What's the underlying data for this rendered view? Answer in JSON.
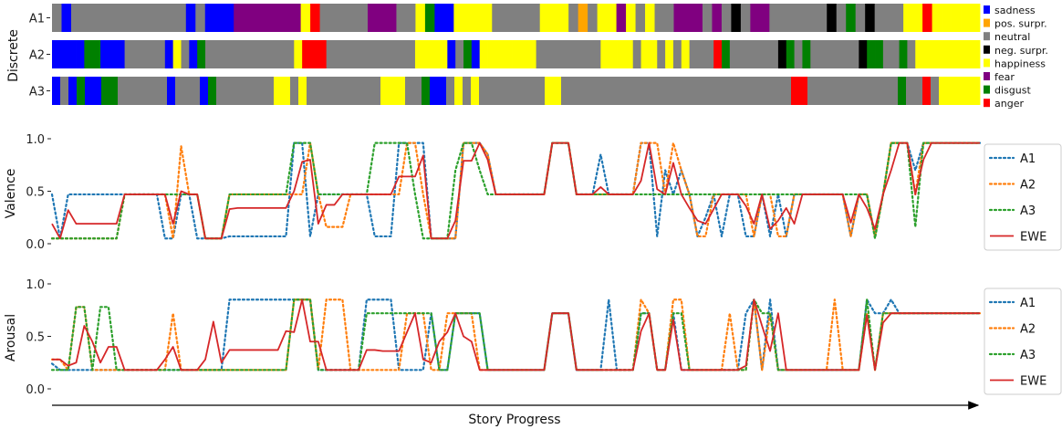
{
  "chart_data": [
    {
      "type": "heatmap",
      "ylabel": "Discrete",
      "rows": [
        "A1",
        "A2",
        "A3"
      ],
      "legend": [
        {
          "label": "sadness",
          "color": "#0000ff"
        },
        {
          "label": "pos. surpr.",
          "color": "#ffa500"
        },
        {
          "label": "neutral",
          "color": "#808080"
        },
        {
          "label": "neg. surpr.",
          "color": "#000000"
        },
        {
          "label": "happiness",
          "color": "#ffff00"
        },
        {
          "label": "fear",
          "color": "#800080"
        },
        {
          "label": "disgust",
          "color": "#008000"
        },
        {
          "label": "anger",
          "color": "#ff0000"
        }
      ],
      "emotion_codes": {
        "B": "sadness",
        "O": "pos. surpr.",
        "G": "neutral",
        "K": "neg. surpr.",
        "Y": "happiness",
        "P": "fear",
        "D": "disgust",
        "R": "anger"
      },
      "sequences": {
        "A1": "GBGGGGGGGGGGGGBGBBBPPPPPPPYRGGGGGPPPGGYDBBYYYYGGGGGYYYGOGYYPYGYGGPPPGPGKGPPGGGGGGKGDGKGGGYYRYYYYY",
        "A2": "BBBBDDBBBGGGGGBYGBDGGGGGGGGGGGYRRRGGGGGGGGGGGYYYYBGDBYYYYYYYGGGGGGGGYYYYGYYGYGYGGGRDGGGGGGKDGDGGGGGGKDDGGDGYYYYYYYY",
        "A3": "BGBDBBDDGGGGGGBGGGBDGGGGGGGYYGYGGGGGGGGGYYYGGDBBGYGYGGGGGGGGYYGGGGGGGGGGGGGGGGGGGGGGGGGGGGRRGGGGGGGGGGGDGGRGYYYYY"
      }
    },
    {
      "type": "line",
      "ylabel": "Valence",
      "ylim": [
        0.0,
        1.0
      ],
      "yticks": [
        "0.0",
        "0.5",
        "1.0"
      ],
      "legend": [
        "A1",
        "A2",
        "A3",
        "EWE"
      ],
      "series": [
        {
          "name": "A1",
          "style": "dotted",
          "color": "#1f77b4",
          "values": [
            0.47,
            0.05,
            0.47,
            0.47,
            0.47,
            0.47,
            0.47,
            0.47,
            0.47,
            0.47,
            0.47,
            0.47,
            0.47,
            0.47,
            0.05,
            0.05,
            0.47,
            0.47,
            0.05,
            0.05,
            0.05,
            0.05,
            0.07,
            0.07,
            0.07,
            0.07,
            0.07,
            0.07,
            0.07,
            0.07,
            0.96,
            0.96,
            0.07,
            0.47,
            0.47,
            0.47,
            0.47,
            0.47,
            0.47,
            0.47,
            0.07,
            0.07,
            0.07,
            0.96,
            0.96,
            0.96,
            0.96,
            0.05,
            0.05,
            0.05,
            0.05,
            0.96,
            0.96,
            0.96,
            0.85,
            0.47,
            0.47,
            0.47,
            0.47,
            0.47,
            0.47,
            0.47,
            0.96,
            0.96,
            0.96,
            0.47,
            0.47,
            0.47,
            0.85,
            0.47,
            0.47,
            0.47,
            0.47,
            0.96,
            0.96,
            0.07,
            0.7,
            0.47,
            0.7,
            0.47,
            0.07,
            0.25,
            0.47,
            0.07,
            0.47,
            0.47,
            0.07,
            0.07,
            0.47,
            0.07,
            0.47,
            0.07,
            0.47,
            0.47,
            0.47,
            0.47,
            0.47,
            0.47,
            0.47,
            0.07,
            0.47,
            0.47,
            0.07,
            0.47,
            0.96,
            0.96,
            0.96,
            0.7,
            0.96,
            0.96,
            0.96,
            0.96,
            0.96,
            0.96,
            0.96,
            0.96
          ]
        },
        {
          "name": "A2",
          "style": "dotted",
          "color": "#ff7f0e",
          "values": [
            0.05,
            0.05,
            0.05,
            0.05,
            0.05,
            0.05,
            0.05,
            0.05,
            0.05,
            0.47,
            0.47,
            0.47,
            0.47,
            0.47,
            0.47,
            0.05,
            0.93,
            0.47,
            0.47,
            0.05,
            0.05,
            0.05,
            0.47,
            0.47,
            0.47,
            0.47,
            0.47,
            0.47,
            0.47,
            0.47,
            0.47,
            0.47,
            0.96,
            0.47,
            0.16,
            0.16,
            0.16,
            0.47,
            0.47,
            0.47,
            0.47,
            0.47,
            0.47,
            0.47,
            0.96,
            0.96,
            0.47,
            0.05,
            0.05,
            0.05,
            0.05,
            0.96,
            0.96,
            0.96,
            0.85,
            0.47,
            0.47,
            0.47,
            0.47,
            0.47,
            0.47,
            0.47,
            0.96,
            0.96,
            0.96,
            0.47,
            0.47,
            0.47,
            0.47,
            0.47,
            0.47,
            0.47,
            0.47,
            0.96,
            0.96,
            0.96,
            0.47,
            0.96,
            0.7,
            0.47,
            0.07,
            0.07,
            0.47,
            0.47,
            0.47,
            0.47,
            0.47,
            0.07,
            0.47,
            0.47,
            0.07,
            0.07,
            0.47,
            0.47,
            0.47,
            0.47,
            0.47,
            0.47,
            0.47,
            0.07,
            0.47,
            0.47,
            0.07,
            0.47,
            0.96,
            0.96,
            0.96,
            0.47,
            0.96,
            0.96,
            0.96,
            0.96,
            0.96,
            0.96,
            0.96,
            0.96
          ]
        },
        {
          "name": "A3",
          "style": "dotted",
          "color": "#2ca02c",
          "values": [
            0.05,
            0.05,
            0.05,
            0.05,
            0.05,
            0.05,
            0.05,
            0.05,
            0.05,
            0.47,
            0.47,
            0.47,
            0.47,
            0.47,
            0.47,
            0.47,
            0.47,
            0.47,
            0.47,
            0.05,
            0.05,
            0.05,
            0.47,
            0.47,
            0.47,
            0.47,
            0.47,
            0.47,
            0.47,
            0.47,
            0.96,
            0.96,
            0.96,
            0.47,
            0.47,
            0.47,
            0.47,
            0.47,
            0.47,
            0.47,
            0.96,
            0.96,
            0.96,
            0.96,
            0.96,
            0.47,
            0.05,
            0.05,
            0.05,
            0.05,
            0.7,
            0.96,
            0.96,
            0.7,
            0.47,
            0.47,
            0.47,
            0.47,
            0.47,
            0.47,
            0.47,
            0.47,
            0.96,
            0.96,
            0.96,
            0.47,
            0.47,
            0.47,
            0.47,
            0.47,
            0.47,
            0.47,
            0.47,
            0.47,
            0.47,
            0.47,
            0.47,
            0.47,
            0.47,
            0.47,
            0.47,
            0.47,
            0.47,
            0.47,
            0.47,
            0.47,
            0.47,
            0.47,
            0.47,
            0.47,
            0.47,
            0.47,
            0.47,
            0.47,
            0.47,
            0.47,
            0.47,
            0.47,
            0.47,
            0.47,
            0.47,
            0.47,
            0.05,
            0.47,
            0.96,
            0.96,
            0.96,
            0.16,
            0.96,
            0.96,
            0.96,
            0.96,
            0.96,
            0.96,
            0.96,
            0.96
          ]
        },
        {
          "name": "EWE",
          "style": "solid",
          "color": "#d62728",
          "values": [
            0.19,
            0.05,
            0.32,
            0.19,
            0.19,
            0.19,
            0.19,
            0.19,
            0.19,
            0.47,
            0.47,
            0.47,
            0.47,
            0.47,
            0.47,
            0.19,
            0.5,
            0.47,
            0.47,
            0.05,
            0.05,
            0.05,
            0.33,
            0.34,
            0.34,
            0.34,
            0.34,
            0.34,
            0.34,
            0.34,
            0.5,
            0.78,
            0.8,
            0.19,
            0.37,
            0.37,
            0.47,
            0.47,
            0.47,
            0.47,
            0.47,
            0.47,
            0.47,
            0.64,
            0.64,
            0.64,
            0.84,
            0.05,
            0.05,
            0.05,
            0.22,
            0.79,
            0.79,
            0.96,
            0.8,
            0.47,
            0.47,
            0.47,
            0.47,
            0.47,
            0.47,
            0.47,
            0.96,
            0.96,
            0.96,
            0.47,
            0.47,
            0.47,
            0.54,
            0.47,
            0.47,
            0.47,
            0.47,
            0.6,
            0.96,
            0.52,
            0.47,
            0.77,
            0.47,
            0.34,
            0.22,
            0.19,
            0.33,
            0.47,
            0.47,
            0.47,
            0.36,
            0.19,
            0.47,
            0.14,
            0.22,
            0.34,
            0.19,
            0.47,
            0.47,
            0.47,
            0.47,
            0.47,
            0.47,
            0.2,
            0.47,
            0.34,
            0.14,
            0.47,
            0.7,
            0.96,
            0.96,
            0.47,
            0.8,
            0.96,
            0.96,
            0.96,
            0.96,
            0.96,
            0.96,
            0.96
          ]
        }
      ]
    },
    {
      "type": "line",
      "ylabel": "Arousal",
      "xlabel": "Story Progress",
      "ylim": [
        0.0,
        1.0
      ],
      "yticks": [
        "0.0",
        "0.5",
        "1.0"
      ],
      "legend": [
        "A1",
        "A2",
        "A3",
        "EWE"
      ],
      "series": [
        {
          "name": "A1",
          "style": "dotted",
          "color": "#1f77b4",
          "values": [
            0.24,
            0.18,
            0.18,
            0.18,
            0.18,
            0.18,
            0.18,
            0.18,
            0.18,
            0.18,
            0.18,
            0.18,
            0.18,
            0.18,
            0.18,
            0.18,
            0.18,
            0.18,
            0.18,
            0.18,
            0.18,
            0.18,
            0.85,
            0.85,
            0.85,
            0.85,
            0.85,
            0.85,
            0.85,
            0.85,
            0.85,
            0.85,
            0.85,
            0.18,
            0.18,
            0.18,
            0.18,
            0.18,
            0.18,
            0.85,
            0.85,
            0.85,
            0.85,
            0.18,
            0.18,
            0.18,
            0.18,
            0.72,
            0.18,
            0.18,
            0.72,
            0.72,
            0.72,
            0.72,
            0.18,
            0.18,
            0.18,
            0.18,
            0.18,
            0.18,
            0.18,
            0.18,
            0.72,
            0.72,
            0.72,
            0.18,
            0.18,
            0.18,
            0.18,
            0.85,
            0.18,
            0.18,
            0.18,
            0.72,
            0.72,
            0.18,
            0.18,
            0.72,
            0.18,
            0.18,
            0.18,
            0.18,
            0.18,
            0.18,
            0.18,
            0.18,
            0.72,
            0.85,
            0.18,
            0.85,
            0.18,
            0.18,
            0.18,
            0.18,
            0.18,
            0.18,
            0.18,
            0.18,
            0.18,
            0.18,
            0.18,
            0.85,
            0.72,
            0.72,
            0.85,
            0.72,
            0.72,
            0.72,
            0.72,
            0.72,
            0.72,
            0.72,
            0.72,
            0.72,
            0.72,
            0.72
          ]
        },
        {
          "name": "A2",
          "style": "dotted",
          "color": "#ff7f0e",
          "values": [
            0.28,
            0.28,
            0.18,
            0.78,
            0.78,
            0.18,
            0.18,
            0.18,
            0.18,
            0.18,
            0.18,
            0.18,
            0.18,
            0.18,
            0.18,
            0.72,
            0.18,
            0.18,
            0.18,
            0.18,
            0.18,
            0.18,
            0.18,
            0.18,
            0.18,
            0.18,
            0.18,
            0.18,
            0.18,
            0.18,
            0.85,
            0.85,
            0.85,
            0.18,
            0.85,
            0.85,
            0.85,
            0.18,
            0.18,
            0.18,
            0.18,
            0.18,
            0.18,
            0.18,
            0.72,
            0.72,
            0.72,
            0.18,
            0.18,
            0.72,
            0.72,
            0.72,
            0.72,
            0.18,
            0.18,
            0.18,
            0.18,
            0.18,
            0.18,
            0.18,
            0.18,
            0.18,
            0.72,
            0.72,
            0.72,
            0.18,
            0.18,
            0.18,
            0.18,
            0.18,
            0.18,
            0.18,
            0.18,
            0.85,
            0.72,
            0.18,
            0.18,
            0.85,
            0.85,
            0.18,
            0.18,
            0.18,
            0.18,
            0.18,
            0.72,
            0.18,
            0.18,
            0.85,
            0.18,
            0.72,
            0.18,
            0.18,
            0.18,
            0.18,
            0.18,
            0.18,
            0.18,
            0.85,
            0.18,
            0.18,
            0.18,
            0.72,
            0.18,
            0.72,
            0.72,
            0.72,
            0.72,
            0.72,
            0.72,
            0.72,
            0.72,
            0.72,
            0.72,
            0.72,
            0.72,
            0.72
          ]
        },
        {
          "name": "A3",
          "style": "dotted",
          "color": "#2ca02c",
          "values": [
            0.18,
            0.18,
            0.18,
            0.78,
            0.78,
            0.18,
            0.78,
            0.78,
            0.18,
            0.18,
            0.18,
            0.18,
            0.18,
            0.18,
            0.18,
            0.18,
            0.18,
            0.18,
            0.18,
            0.18,
            0.18,
            0.18,
            0.18,
            0.18,
            0.18,
            0.18,
            0.18,
            0.18,
            0.18,
            0.18,
            0.85,
            0.85,
            0.85,
            0.18,
            0.18,
            0.18,
            0.18,
            0.18,
            0.18,
            0.72,
            0.72,
            0.72,
            0.72,
            0.72,
            0.72,
            0.72,
            0.72,
            0.72,
            0.18,
            0.18,
            0.72,
            0.72,
            0.72,
            0.72,
            0.18,
            0.18,
            0.18,
            0.18,
            0.18,
            0.18,
            0.18,
            0.18,
            0.72,
            0.72,
            0.72,
            0.18,
            0.18,
            0.18,
            0.18,
            0.18,
            0.18,
            0.18,
            0.18,
            0.72,
            0.72,
            0.18,
            0.18,
            0.72,
            0.72,
            0.18,
            0.18,
            0.18,
            0.18,
            0.18,
            0.18,
            0.18,
            0.18,
            0.85,
            0.72,
            0.72,
            0.18,
            0.18,
            0.18,
            0.18,
            0.18,
            0.18,
            0.18,
            0.18,
            0.18,
            0.18,
            0.18,
            0.85,
            0.18,
            0.72,
            0.72,
            0.72,
            0.72,
            0.72,
            0.72,
            0.72,
            0.72,
            0.72,
            0.72,
            0.72,
            0.72,
            0.72
          ]
        },
        {
          "name": "EWE",
          "style": "solid",
          "color": "#d62728",
          "values": [
            0.28,
            0.28,
            0.22,
            0.25,
            0.6,
            0.45,
            0.25,
            0.4,
            0.4,
            0.18,
            0.18,
            0.18,
            0.18,
            0.18,
            0.28,
            0.4,
            0.18,
            0.18,
            0.18,
            0.28,
            0.64,
            0.25,
            0.37,
            0.37,
            0.37,
            0.37,
            0.37,
            0.37,
            0.37,
            0.55,
            0.54,
            0.85,
            0.45,
            0.45,
            0.18,
            0.18,
            0.18,
            0.18,
            0.18,
            0.37,
            0.37,
            0.36,
            0.36,
            0.36,
            0.54,
            0.72,
            0.28,
            0.25,
            0.45,
            0.54,
            0.72,
            0.5,
            0.45,
            0.18,
            0.18,
            0.18,
            0.18,
            0.18,
            0.18,
            0.18,
            0.18,
            0.18,
            0.72,
            0.72,
            0.72,
            0.18,
            0.18,
            0.18,
            0.18,
            0.18,
            0.18,
            0.18,
            0.18,
            0.55,
            0.72,
            0.18,
            0.18,
            0.66,
            0.18,
            0.18,
            0.18,
            0.18,
            0.18,
            0.18,
            0.18,
            0.18,
            0.22,
            0.85,
            0.6,
            0.36,
            0.72,
            0.18,
            0.18,
            0.18,
            0.18,
            0.18,
            0.18,
            0.18,
            0.18,
            0.18,
            0.18,
            0.7,
            0.18,
            0.63,
            0.72,
            0.72,
            0.72,
            0.72,
            0.72,
            0.72,
            0.72,
            0.72,
            0.72,
            0.72,
            0.72,
            0.72
          ]
        }
      ]
    }
  ]
}
